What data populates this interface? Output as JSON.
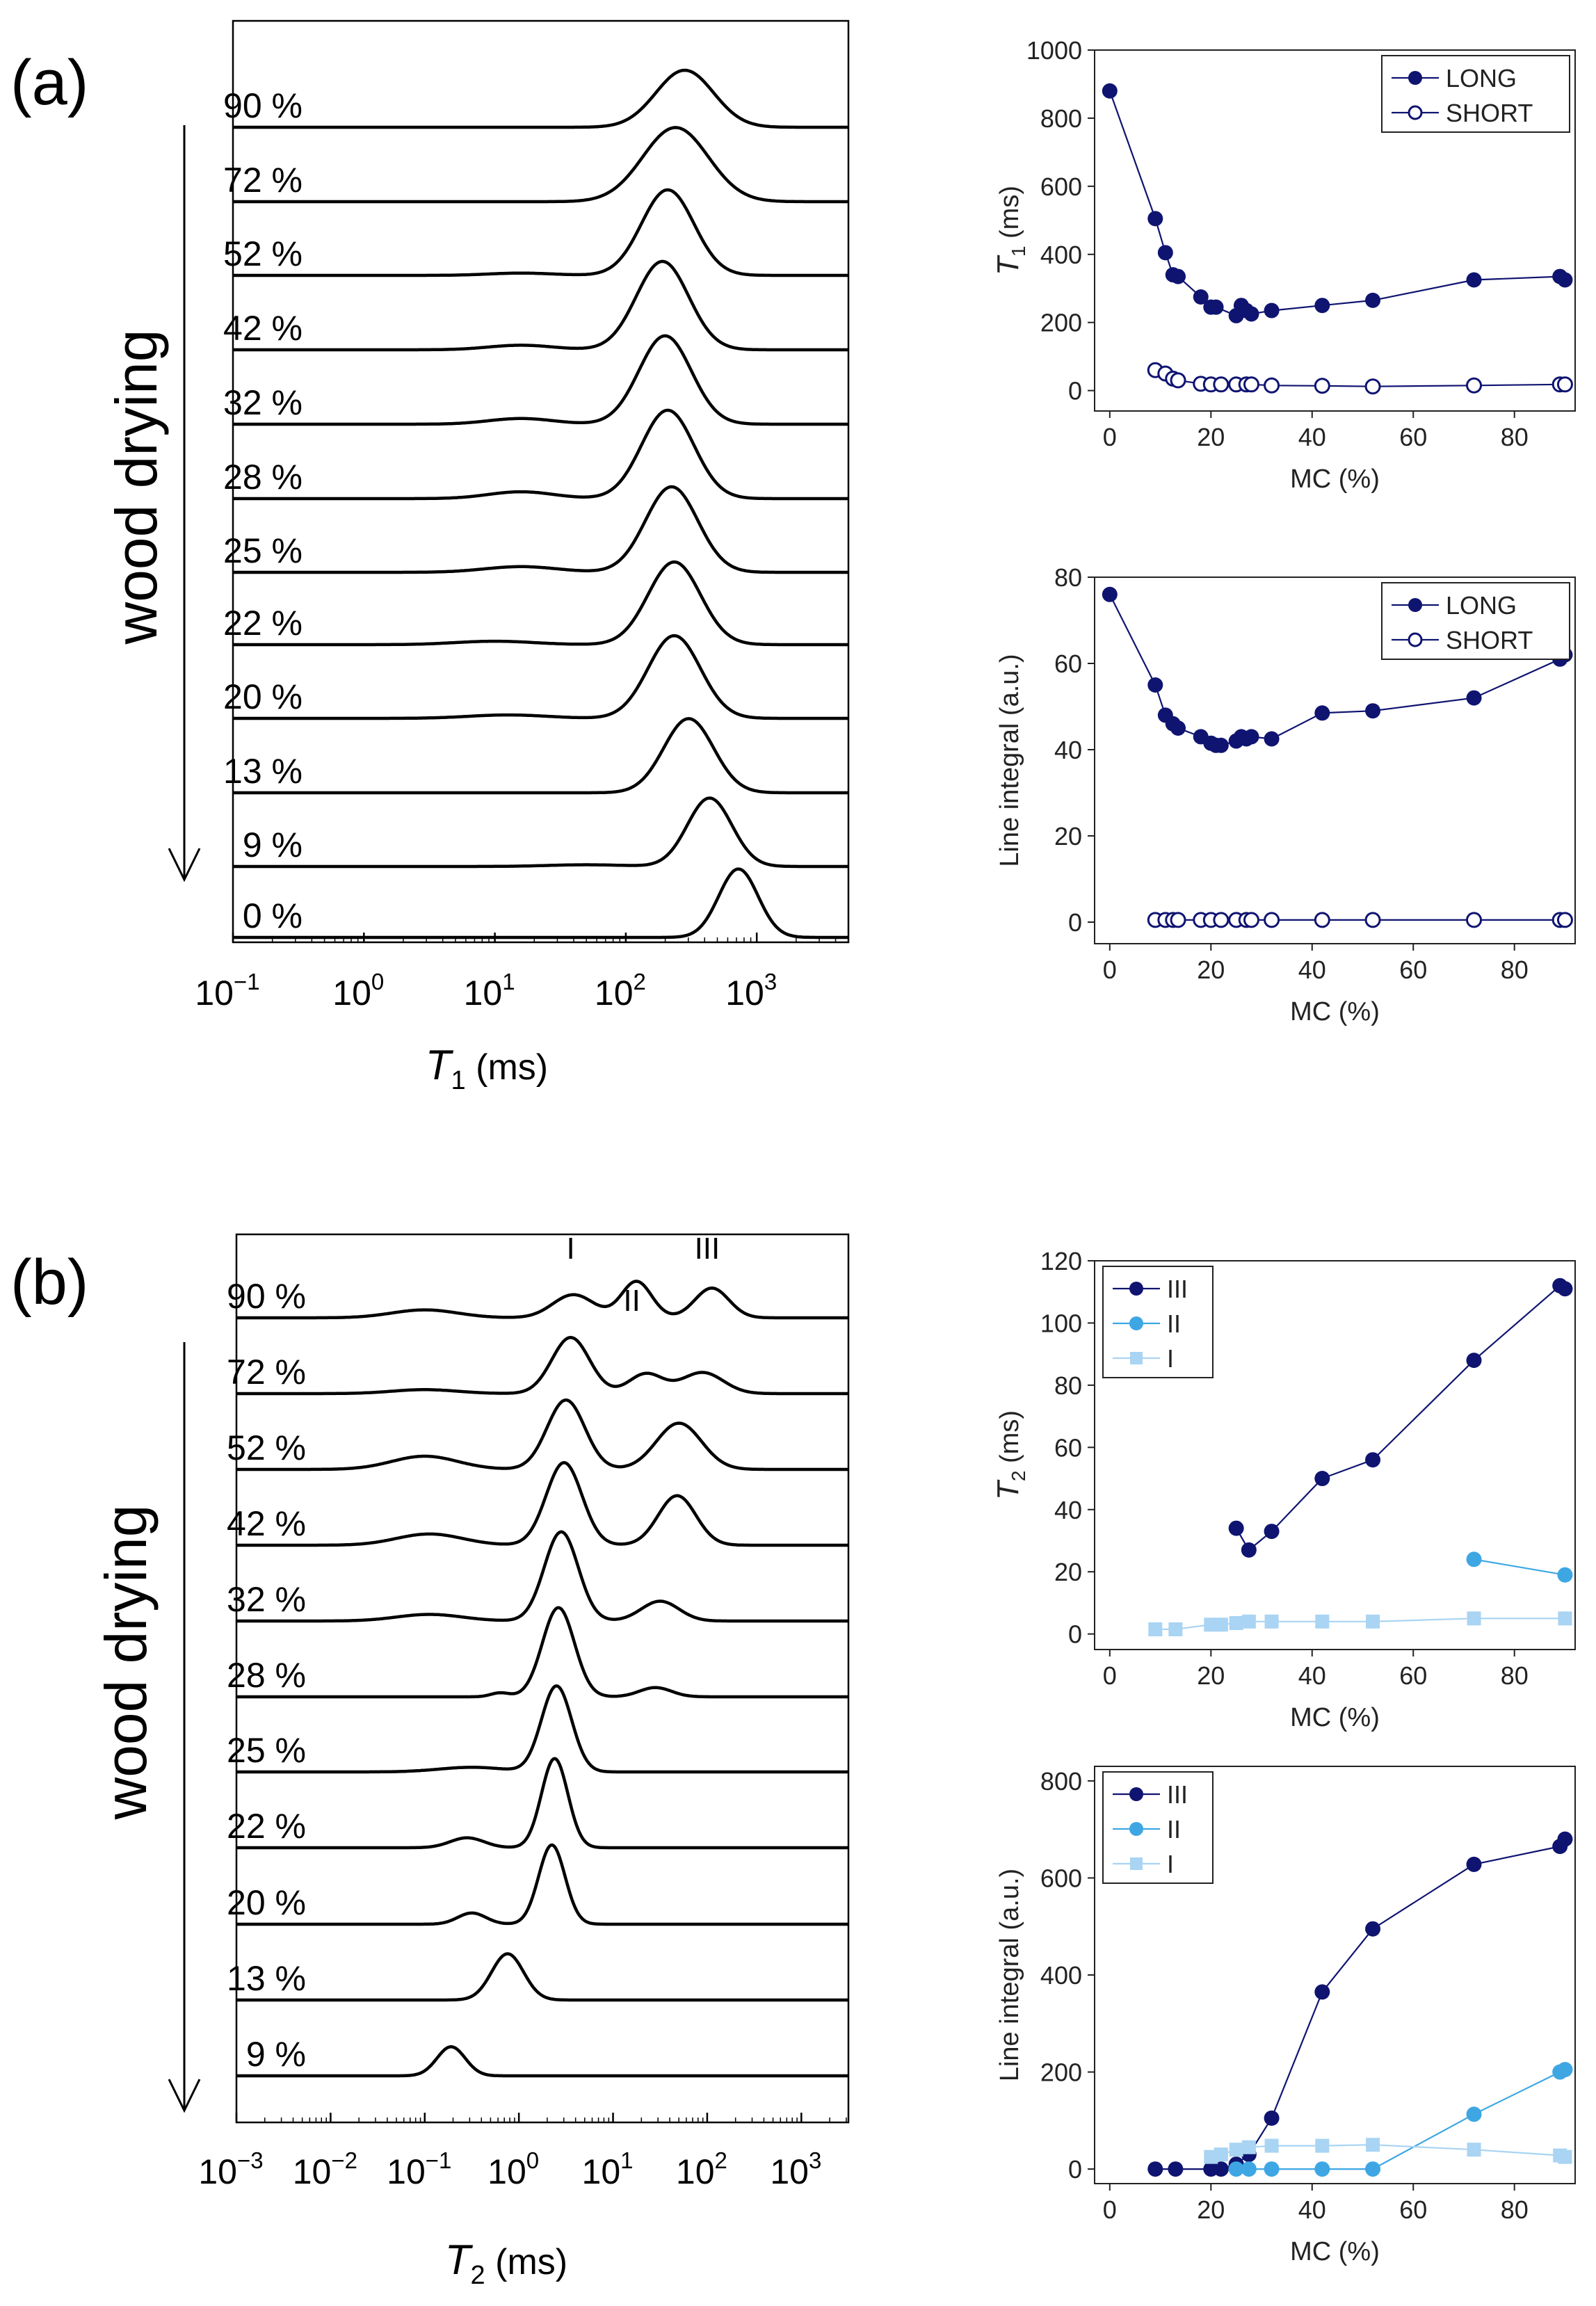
{
  "chart_data": [
    {
      "id": "a_T1_distributions",
      "type": "line",
      "panel_label": "(a)",
      "side_label": "wood drying",
      "xlabel": "T1 (ms)",
      "xscale": "log",
      "xlim_log10": [
        -1,
        3.7
      ],
      "xtick_exponents": [
        "−1",
        "0",
        "1",
        "2",
        "3"
      ],
      "offset_curves": [
        {
          "label": "90 %",
          "peaks": [
            {
              "log_center": 2.45,
              "sigma": 0.22,
              "height": 1.0
            }
          ]
        },
        {
          "label": "72 %",
          "peaks": [
            {
              "log_center": 2.38,
              "sigma": 0.25,
              "height": 1.3
            }
          ]
        },
        {
          "label": "52 %",
          "peaks": [
            {
              "log_center": 2.32,
              "sigma": 0.2,
              "height": 1.5
            },
            {
              "log_center": 1.2,
              "sigma": 0.25,
              "height": 0.04
            }
          ]
        },
        {
          "label": "42 %",
          "peaks": [
            {
              "log_center": 2.28,
              "sigma": 0.2,
              "height": 1.55
            },
            {
              "log_center": 1.2,
              "sigma": 0.25,
              "height": 0.08
            }
          ]
        },
        {
          "label": "32 %",
          "peaks": [
            {
              "log_center": 2.3,
              "sigma": 0.2,
              "height": 1.55
            },
            {
              "log_center": 1.2,
              "sigma": 0.25,
              "height": 0.1
            }
          ]
        },
        {
          "label": "28 %",
          "peaks": [
            {
              "log_center": 2.32,
              "sigma": 0.2,
              "height": 1.55
            },
            {
              "log_center": 1.2,
              "sigma": 0.25,
              "height": 0.12
            }
          ]
        },
        {
          "label": "25 %",
          "peaks": [
            {
              "log_center": 2.35,
              "sigma": 0.2,
              "height": 1.5
            },
            {
              "log_center": 1.2,
              "sigma": 0.28,
              "height": 0.1
            }
          ]
        },
        {
          "label": "22 %",
          "peaks": [
            {
              "log_center": 2.37,
              "sigma": 0.2,
              "height": 1.45
            },
            {
              "log_center": 1.0,
              "sigma": 0.3,
              "height": 0.06
            }
          ]
        },
        {
          "label": "20 %",
          "peaks": [
            {
              "log_center": 2.37,
              "sigma": 0.2,
              "height": 1.45
            },
            {
              "log_center": 1.1,
              "sigma": 0.3,
              "height": 0.06
            }
          ]
        },
        {
          "label": "13 %",
          "peaks": [
            {
              "log_center": 2.48,
              "sigma": 0.19,
              "height": 1.3
            }
          ]
        },
        {
          "label": "9 %",
          "peaks": [
            {
              "log_center": 2.64,
              "sigma": 0.17,
              "height": 1.2
            },
            {
              "log_center": 1.7,
              "sigma": 0.3,
              "height": 0.03
            }
          ]
        },
        {
          "label": "0 %",
          "peaks": [
            {
              "log_center": 2.86,
              "sigma": 0.15,
              "height": 1.2
            }
          ]
        }
      ]
    },
    {
      "id": "a_T1_vs_MC",
      "type": "scatter",
      "xlabel": "MC (%)",
      "ylabel": "T1 (ms)",
      "xlim": [
        -3,
        92
      ],
      "ylim": [
        -60,
        1000
      ],
      "xticks": [
        0,
        20,
        40,
        60,
        80
      ],
      "yticks": [
        0,
        200,
        400,
        600,
        800,
        1000
      ],
      "legend": "top-right",
      "series": [
        {
          "name": "LONG",
          "marker": "filled",
          "color": "#0f1470",
          "x": [
            0,
            9,
            11,
            12.5,
            13.5,
            18,
            20,
            21,
            25,
            26,
            27,
            28,
            32,
            42,
            52,
            72,
            89,
            90
          ],
          "y": [
            880,
            505,
            405,
            340,
            335,
            275,
            245,
            245,
            220,
            250,
            235,
            225,
            235,
            250,
            265,
            325,
            335,
            325
          ]
        },
        {
          "name": "SHORT",
          "marker": "open",
          "color": "#0f1470",
          "x": [
            9,
            11,
            12.5,
            13.5,
            18,
            20,
            22,
            25,
            27,
            28,
            32,
            42,
            52,
            72,
            89,
            90
          ],
          "y": [
            60,
            50,
            35,
            30,
            20,
            18,
            18,
            18,
            18,
            18,
            15,
            14,
            12,
            15,
            18,
            18
          ]
        }
      ]
    },
    {
      "id": "a_integral_vs_MC",
      "type": "scatter",
      "xlabel": "MC (%)",
      "ylabel": "Line integral (a.u.)",
      "xlim": [
        -3,
        92
      ],
      "ylim": [
        -5,
        80
      ],
      "xticks": [
        0,
        20,
        40,
        60,
        80
      ],
      "yticks": [
        0,
        20,
        40,
        60,
        80
      ],
      "legend": "top-right",
      "series": [
        {
          "name": "LONG",
          "marker": "filled",
          "color": "#0f1470",
          "x": [
            0,
            9,
            11,
            12.5,
            13.5,
            18,
            20,
            21,
            22,
            25,
            26,
            27,
            28,
            32,
            42,
            52,
            72,
            89,
            90
          ],
          "y": [
            76,
            55,
            48,
            46,
            45,
            43,
            41.5,
            41,
            41,
            42,
            43,
            42.5,
            43,
            42.5,
            48.5,
            49,
            52,
            61,
            62
          ]
        },
        {
          "name": "SHORT",
          "marker": "open",
          "color": "#0f1470",
          "x": [
            9,
            11,
            12.5,
            13.5,
            18,
            20,
            22,
            25,
            27,
            28,
            32,
            42,
            52,
            72,
            89,
            90
          ],
          "y": [
            0.5,
            0.5,
            0.5,
            0.5,
            0.5,
            0.5,
            0.5,
            0.5,
            0.5,
            0.5,
            0.5,
            0.5,
            0.5,
            0.5,
            0.5,
            0.5
          ]
        }
      ]
    },
    {
      "id": "b_T2_distributions",
      "type": "line",
      "panel_label": "(b)",
      "side_label": "wood drying",
      "xlabel": "T2 (ms)",
      "xscale": "log",
      "xlim_log10": [
        -3,
        3.5
      ],
      "xtick_exponents": [
        "−3",
        "−2",
        "−1",
        "0",
        "1",
        "2",
        "3"
      ],
      "peak_labels": [
        {
          "text": "I",
          "log_x": 0.55,
          "curve": 0
        },
        {
          "text": "II",
          "log_x": 1.2,
          "curve": 0,
          "below": true
        },
        {
          "text": "III",
          "log_x": 2.0,
          "curve": 0
        }
      ],
      "offset_curves": [
        {
          "label": "90 %",
          "peaks": [
            {
              "log_center": 0.58,
              "sigma": 0.22,
              "height": 0.35
            },
            {
              "log_center": 1.25,
              "sigma": 0.16,
              "height": 0.55
            },
            {
              "log_center": 2.05,
              "sigma": 0.18,
              "height": 0.45
            },
            {
              "log_center": -1.0,
              "sigma": 0.35,
              "height": 0.12
            }
          ]
        },
        {
          "label": "72 %",
          "peaks": [
            {
              "log_center": 0.55,
              "sigma": 0.2,
              "height": 0.85
            },
            {
              "log_center": 1.35,
              "sigma": 0.18,
              "height": 0.3
            },
            {
              "log_center": 1.95,
              "sigma": 0.22,
              "height": 0.32
            },
            {
              "log_center": -1.0,
              "sigma": 0.35,
              "height": 0.06
            }
          ]
        },
        {
          "label": "52 %",
          "peaks": [
            {
              "log_center": 0.5,
              "sigma": 0.2,
              "height": 1.05
            },
            {
              "log_center": 1.7,
              "sigma": 0.24,
              "height": 0.7
            },
            {
              "log_center": -1.0,
              "sigma": 0.35,
              "height": 0.2
            }
          ]
        },
        {
          "label": "42 %",
          "peaks": [
            {
              "log_center": 0.48,
              "sigma": 0.19,
              "height": 1.25
            },
            {
              "log_center": 1.68,
              "sigma": 0.2,
              "height": 0.75
            },
            {
              "log_center": -0.95,
              "sigma": 0.35,
              "height": 0.17
            }
          ]
        },
        {
          "label": "32 %",
          "peaks": [
            {
              "log_center": 0.45,
              "sigma": 0.18,
              "height": 1.35
            },
            {
              "log_center": 1.5,
              "sigma": 0.2,
              "height": 0.3
            },
            {
              "log_center": -0.95,
              "sigma": 0.35,
              "height": 0.1
            }
          ]
        },
        {
          "label": "28 %",
          "peaks": [
            {
              "log_center": 0.42,
              "sigma": 0.17,
              "height": 1.35
            },
            {
              "log_center": 1.45,
              "sigma": 0.17,
              "height": 0.14
            },
            {
              "log_center": -0.2,
              "sigma": 0.1,
              "height": 0.06
            }
          ]
        },
        {
          "label": "25 %",
          "peaks": [
            {
              "log_center": 0.4,
              "sigma": 0.16,
              "height": 1.3
            },
            {
              "log_center": -0.5,
              "sigma": 0.35,
              "height": 0.07
            }
          ]
        },
        {
          "label": "22 %",
          "peaks": [
            {
              "log_center": 0.38,
              "sigma": 0.14,
              "height": 1.35
            },
            {
              "log_center": -0.55,
              "sigma": 0.18,
              "height": 0.15
            }
          ]
        },
        {
          "label": "20 %",
          "peaks": [
            {
              "log_center": 0.35,
              "sigma": 0.14,
              "height": 1.2
            },
            {
              "log_center": -0.5,
              "sigma": 0.15,
              "height": 0.17
            }
          ]
        },
        {
          "label": "13 %",
          "peaks": [
            {
              "log_center": -0.12,
              "sigma": 0.17,
              "height": 0.7
            }
          ]
        },
        {
          "label": "9 %",
          "peaks": [
            {
              "log_center": -0.72,
              "sigma": 0.15,
              "height": 0.44
            }
          ]
        }
      ]
    },
    {
      "id": "b_T2_vs_MC",
      "type": "scatter",
      "xlabel": "MC (%)",
      "ylabel": "T2 (ms)",
      "xlim": [
        -3,
        92
      ],
      "ylim": [
        -5,
        120
      ],
      "xticks": [
        0,
        20,
        40,
        60,
        80
      ],
      "yticks": [
        0,
        20,
        40,
        60,
        80,
        100,
        120
      ],
      "legend": "top-left",
      "series": [
        {
          "name": "III",
          "marker": "circle",
          "color": "#0f1470",
          "x": [
            25,
            27.5,
            32,
            42,
            52,
            72,
            89,
            90
          ],
          "y": [
            34,
            27,
            33,
            50,
            56,
            88,
            112,
            111
          ]
        },
        {
          "name": "II",
          "marker": "circle",
          "color": "#3ea7e3",
          "x": [
            72,
            90
          ],
          "y": [
            24,
            19
          ]
        },
        {
          "name": "I",
          "marker": "square",
          "color": "#a9d4f3",
          "x": [
            9,
            13,
            20,
            22,
            25,
            27.5,
            32,
            42,
            52,
            72,
            90
          ],
          "y": [
            1.5,
            1.5,
            3,
            3,
            3.5,
            4,
            4,
            4,
            4,
            5,
            5
          ]
        }
      ]
    },
    {
      "id": "b_integral_vs_MC",
      "type": "scatter",
      "xlabel": "MC (%)",
      "ylabel": "Line integral (a.u.)",
      "xlim": [
        -3,
        92
      ],
      "ylim": [
        -30,
        830
      ],
      "xticks": [
        0,
        20,
        40,
        60,
        80
      ],
      "yticks": [
        0,
        200,
        400,
        600,
        800
      ],
      "legend": "top-left",
      "series": [
        {
          "name": "III",
          "marker": "circle",
          "color": "#0f1470",
          "x": [
            9,
            13,
            20,
            22,
            25,
            27.5,
            32,
            42,
            52,
            72,
            89,
            90
          ],
          "y": [
            0,
            0,
            0,
            0,
            10,
            30,
            105,
            365,
            495,
            628,
            665,
            680
          ]
        },
        {
          "name": "II",
          "marker": "circle",
          "color": "#3ea7e3",
          "x": [
            25,
            27.5,
            32,
            42,
            52,
            72,
            89,
            90
          ],
          "y": [
            0,
            0,
            0,
            0,
            0,
            113,
            200,
            205
          ]
        },
        {
          "name": "I",
          "marker": "square",
          "color": "#a9d4f3",
          "x": [
            20,
            22,
            25,
            27.5,
            32,
            42,
            52,
            72,
            89,
            90
          ],
          "y": [
            25,
            30,
            40,
            45,
            48,
            48,
            50,
            40,
            28,
            25
          ]
        }
      ]
    }
  ]
}
